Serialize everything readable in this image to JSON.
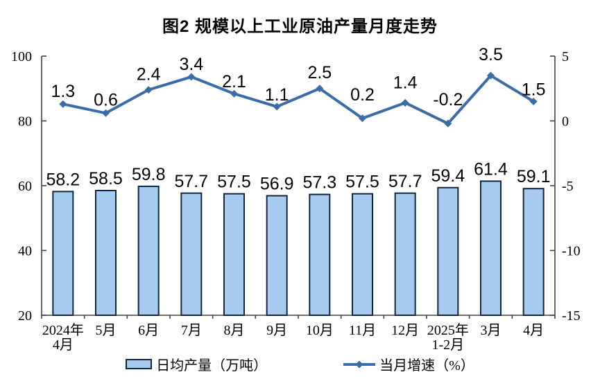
{
  "title": "图2  规模以上工业原油产量月度走势",
  "chart_data": {
    "type": "combo",
    "title": "图2  规模以上工业原油产量月度走势",
    "categories": [
      [
        "2024年",
        "4月"
      ],
      [
        "5月"
      ],
      [
        "6月"
      ],
      [
        "7月"
      ],
      [
        "8月"
      ],
      [
        "9月"
      ],
      [
        "10月"
      ],
      [
        "11月"
      ],
      [
        "12月"
      ],
      [
        "2025年",
        "1-2月"
      ],
      [
        "3月"
      ],
      [
        "4月"
      ]
    ],
    "series": [
      {
        "name": "日均产量（万吨）",
        "type": "bar",
        "axis": "left",
        "values": [
          58.2,
          58.5,
          59.8,
          57.7,
          57.5,
          56.9,
          57.3,
          57.5,
          57.7,
          59.4,
          61.4,
          59.1
        ]
      },
      {
        "name": "当月增速（%）",
        "type": "line",
        "axis": "right",
        "marker": "diamond",
        "values": [
          1.3,
          0.6,
          2.4,
          3.4,
          2.1,
          1.1,
          2.5,
          0.2,
          1.4,
          -0.2,
          3.5,
          1.5
        ]
      }
    ],
    "left_axis": {
      "min": 20,
      "max": 100,
      "ticks": [
        20,
        40,
        60,
        80,
        100
      ]
    },
    "right_axis": {
      "min": -15,
      "max": 5,
      "ticks": [
        -15,
        -10,
        -5,
        0,
        5
      ]
    },
    "grid": false,
    "legend_position": "bottom"
  },
  "colors": {
    "bar_fill": "#A7CBEE",
    "bar_border": "#10253F",
    "line": "#3A6CA8",
    "axis": "#404040",
    "text": "#000000",
    "background": "#FFFFFF"
  }
}
